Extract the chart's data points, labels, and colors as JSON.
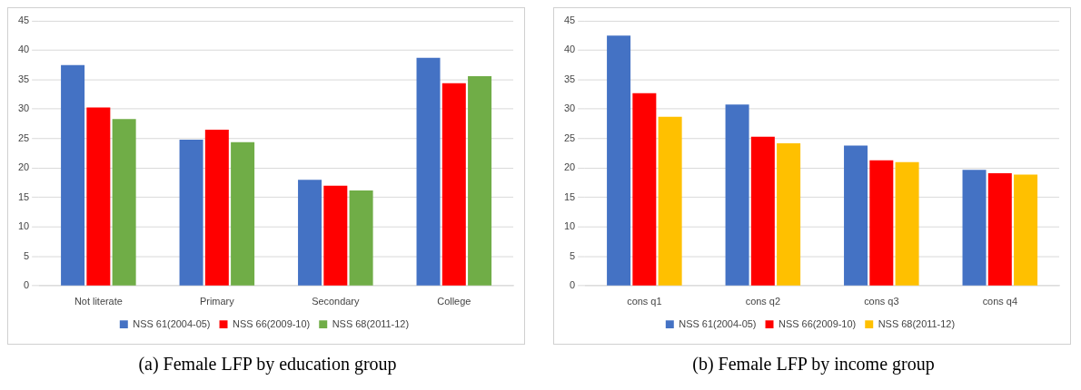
{
  "chart_data": [
    {
      "type": "bar",
      "title": "(a) Female LFP by education group",
      "categories": [
        "Not literate",
        "Primary",
        "Secondary",
        "College"
      ],
      "series": [
        {
          "name": "NSS 61(2004-05)",
          "color": "#4472c4",
          "values": [
            37.5,
            24.8,
            18.0,
            38.7
          ]
        },
        {
          "name": "NSS 66(2009-10)",
          "color": "#ff0000",
          "values": [
            30.3,
            26.5,
            17.0,
            34.4
          ]
        },
        {
          "name": "NSS 68(2011-12)",
          "color": "#70ad47",
          "values": [
            28.3,
            24.4,
            16.2,
            35.6
          ]
        }
      ],
      "ylim": [
        0,
        45
      ],
      "yticks": [
        0,
        5,
        10,
        15,
        20,
        25,
        30,
        35,
        40,
        45
      ],
      "grid": "y",
      "legend": "bottom"
    },
    {
      "type": "bar",
      "title": "(b) Female LFP by income group",
      "categories": [
        "cons q1",
        "cons q2",
        "cons q3",
        "cons q4"
      ],
      "series": [
        {
          "name": "NSS 61(2004-05)",
          "color": "#4472c4",
          "values": [
            42.5,
            30.8,
            23.8,
            19.7
          ]
        },
        {
          "name": "NSS 66(2009-10)",
          "color": "#ff0000",
          "values": [
            32.7,
            25.3,
            21.3,
            19.1
          ]
        },
        {
          "name": "NSS 68(2011-12)",
          "color": "#ffc000",
          "values": [
            28.7,
            24.2,
            21.0,
            18.9
          ]
        }
      ],
      "ylim": [
        0,
        45
      ],
      "yticks": [
        0,
        5,
        10,
        15,
        20,
        25,
        30,
        35,
        40,
        45
      ],
      "grid": "y",
      "legend": "bottom"
    }
  ]
}
